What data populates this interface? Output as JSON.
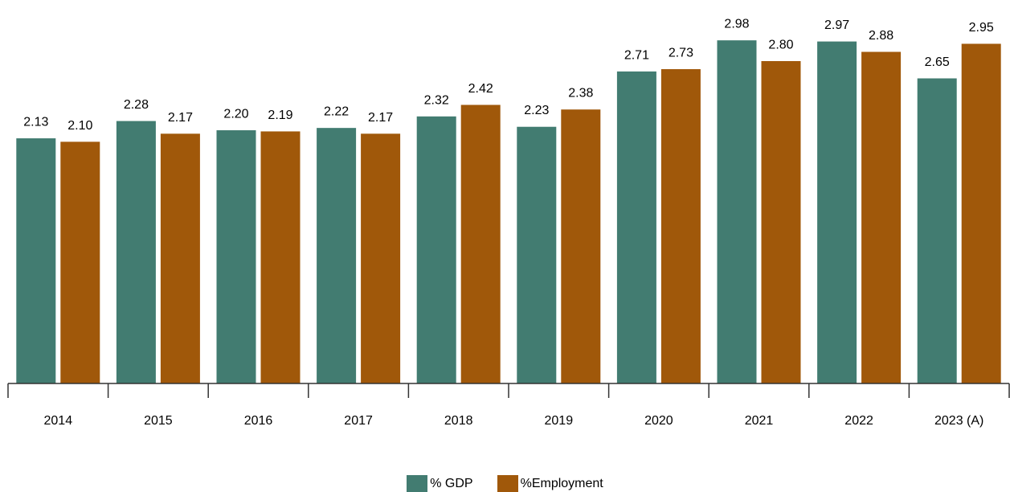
{
  "chart_data": {
    "type": "bar",
    "categories": [
      "2014",
      "2015",
      "2016",
      "2017",
      "2018",
      "2019",
      "2020",
      "2021",
      "2022",
      "2023 (A)"
    ],
    "series": [
      {
        "name": "% GDP",
        "color": "#427c71",
        "values": [
          2.13,
          2.28,
          2.2,
          2.22,
          2.32,
          2.23,
          2.71,
          2.98,
          2.97,
          2.65
        ]
      },
      {
        "name": "%Employment",
        "color": "#a0580a",
        "values": [
          2.1,
          2.17,
          2.19,
          2.17,
          2.42,
          2.38,
          2.73,
          2.8,
          2.88,
          2.95
        ]
      }
    ],
    "title": "",
    "xlabel": "",
    "ylabel": "",
    "ylim": [
      0,
      3.4
    ],
    "value_label_format": "2dp",
    "grid": false,
    "legend_position": "bottom-center"
  }
}
